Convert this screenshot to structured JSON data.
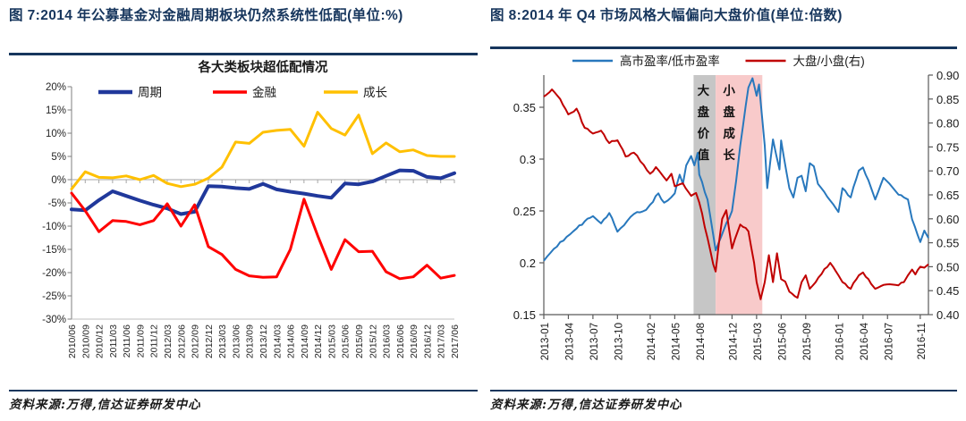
{
  "figure7": {
    "title": "图 7:2014 年公募基金对金融周期板块仍然系统性低配(单位:%)",
    "source": "资料来源:万得,信达证券研发中心",
    "chart_data": {
      "type": "line",
      "title": "各大类板块超低配情况",
      "categories": [
        "2010/06",
        "2010/09",
        "2010/12",
        "2011/03",
        "2011/06",
        "2011/09",
        "2011/12",
        "2012/03",
        "2012/06",
        "2012/09",
        "2012/12",
        "2013/03",
        "2013/06",
        "2013/09",
        "2013/12",
        "2014/03",
        "2014/06",
        "2014/09",
        "2014/12",
        "2015/03",
        "2015/06",
        "2015/09",
        "2015/12",
        "2016/03",
        "2016/06",
        "2016/09",
        "2016/12",
        "2017/03",
        "2017/06"
      ],
      "ylim": [
        -30,
        20
      ],
      "ytick_labels": [
        "20%",
        "15%",
        "10%",
        "5%",
        "0%",
        "-5%",
        "-10%",
        "-15%",
        "-20%",
        "-25%",
        "-30%"
      ],
      "grid": "zero-line-only",
      "legend_position": "top-inside",
      "series": [
        {
          "name": "周期",
          "color": "#20389b",
          "width": 4,
          "values": [
            -6.4,
            -6.6,
            -4.4,
            -2.5,
            -3.5,
            -4.5,
            -5.4,
            -6.2,
            -7.4,
            -6.9,
            -1.4,
            -1.5,
            -1.8,
            -2.0,
            -0.9,
            -2.1,
            -2.6,
            -3.0,
            -3.5,
            -3.9,
            -0.8,
            -1.0,
            -0.4,
            0.8,
            2.0,
            1.9,
            0.6,
            0.3,
            1.4
          ]
        },
        {
          "name": "金融",
          "color": "#ff0000",
          "width": 3,
          "values": [
            -2.9,
            -6.7,
            -11.2,
            -8.8,
            -9.0,
            -9.7,
            -8.8,
            -5.2,
            -10.0,
            -5.4,
            -14.4,
            -16.1,
            -19.3,
            -20.7,
            -21.0,
            -20.9,
            -15.0,
            -4.2,
            -12.0,
            -19.3,
            -12.9,
            -15.5,
            -15.4,
            -19.8,
            -21.3,
            -20.9,
            -18.4,
            -21.2,
            -20.6
          ]
        },
        {
          "name": "成长",
          "color": "#ffc000",
          "width": 3,
          "values": [
            -2.0,
            1.7,
            0.5,
            0.4,
            0.8,
            0.0,
            0.9,
            -0.8,
            -1.5,
            -1.0,
            0.3,
            2.7,
            8.1,
            7.8,
            10.2,
            10.6,
            10.8,
            7.2,
            14.5,
            11.0,
            9.6,
            13.9,
            5.6,
            7.9,
            6.0,
            6.4,
            5.2,
            5.0,
            5.0
          ]
        }
      ]
    }
  },
  "figure8": {
    "title": "图 8:2014 年 Q4 市场风格大幅偏向大盘价值(单位:倍数)",
    "source": "资料来源:万得,信达证券研发中心",
    "chart_data": {
      "type": "line",
      "x_unit": "months-since-2013-01",
      "x_range": [
        0,
        47
      ],
      "xticks": [
        {
          "label": "2013-01",
          "m": 0
        },
        {
          "label": "2013-04",
          "m": 3
        },
        {
          "label": "2013-07",
          "m": 6
        },
        {
          "label": "2013-10",
          "m": 9
        },
        {
          "label": "2014-02",
          "m": 13
        },
        {
          "label": "2014-05",
          "m": 16
        },
        {
          "label": "2014-08",
          "m": 19
        },
        {
          "label": "2014-12",
          "m": 23
        },
        {
          "label": "2015-03",
          "m": 26
        },
        {
          "label": "2015-06",
          "m": 29
        },
        {
          "label": "2015-09",
          "m": 32
        },
        {
          "label": "2016-01",
          "m": 36
        },
        {
          "label": "2016-04",
          "m": 39
        },
        {
          "label": "2016-07",
          "m": 42
        },
        {
          "label": "2016-11",
          "m": 46
        }
      ],
      "left_axis": {
        "lim": [
          0.15,
          0.382
        ],
        "tick_labels": [
          "0.35",
          "0.3",
          "0.25",
          "0.2",
          "0.15"
        ],
        "tick_values": [
          0.35,
          0.3,
          0.25,
          0.2,
          0.15
        ]
      },
      "right_axis": {
        "lim": [
          0.4,
          0.9
        ],
        "tick_labels": [
          "0.90",
          "0.85",
          "0.80",
          "0.75",
          "0.70",
          "0.65",
          "0.60",
          "0.55",
          "0.50",
          "0.45",
          "0.40"
        ],
        "tick_values": [
          0.9,
          0.85,
          0.8,
          0.75,
          0.7,
          0.65,
          0.6,
          0.55,
          0.5,
          0.45,
          0.4
        ]
      },
      "legend_position": "top-center",
      "bands": [
        {
          "label": "大盘价值",
          "color": "#c6c6c6",
          "from_m": 18.3,
          "to_m": 21.0
        },
        {
          "label": "小盘成长",
          "color": "#f8caca",
          "from_m": 21.0,
          "to_m": 26.7
        }
      ],
      "series": [
        {
          "name": "高市盈率/低市盈率",
          "axis": "left",
          "color": "#2878bd",
          "width": 2,
          "points": [
            [
              0,
              0.202
            ],
            [
              2,
              0.22
            ],
            [
              4,
              0.233
            ],
            [
              5,
              0.24
            ],
            [
              6,
              0.245
            ],
            [
              7,
              0.238
            ],
            [
              8,
              0.248
            ],
            [
              9,
              0.23
            ],
            [
              11,
              0.247
            ],
            [
              12.5,
              0.251
            ],
            [
              13,
              0.256
            ],
            [
              14,
              0.267
            ],
            [
              14.7,
              0.258
            ],
            [
              16,
              0.267
            ],
            [
              16.6,
              0.285
            ],
            [
              17,
              0.276
            ],
            [
              17.4,
              0.294
            ],
            [
              18,
              0.303
            ],
            [
              18.4,
              0.294
            ],
            [
              18.8,
              0.306
            ],
            [
              19,
              0.285
            ],
            [
              20,
              0.261
            ],
            [
              21,
              0.212
            ],
            [
              22,
              0.232
            ],
            [
              23,
              0.25
            ],
            [
              23.5,
              0.279
            ],
            [
              24,
              0.313
            ],
            [
              25,
              0.369
            ],
            [
              25.5,
              0.378
            ],
            [
              26,
              0.361
            ],
            [
              26.3,
              0.372
            ],
            [
              27,
              0.313
            ],
            [
              27.3,
              0.272
            ],
            [
              28,
              0.319
            ],
            [
              28.8,
              0.29
            ],
            [
              29,
              0.318
            ],
            [
              30,
              0.272
            ],
            [
              30.5,
              0.263
            ],
            [
              31,
              0.282
            ],
            [
              31.5,
              0.284
            ],
            [
              32,
              0.269
            ],
            [
              32.5,
              0.296
            ],
            [
              33,
              0.293
            ],
            [
              33.5,
              0.276
            ],
            [
              35,
              0.26
            ],
            [
              36,
              0.249
            ],
            [
              36.5,
              0.272
            ],
            [
              37.5,
              0.263
            ],
            [
              38.5,
              0.289
            ],
            [
              39,
              0.292
            ],
            [
              40,
              0.272
            ],
            [
              40.5,
              0.261
            ],
            [
              41.5,
              0.282
            ],
            [
              43,
              0.269
            ],
            [
              44,
              0.263
            ],
            [
              44.5,
              0.261
            ],
            [
              45,
              0.242
            ],
            [
              46,
              0.22
            ],
            [
              46.5,
              0.231
            ],
            [
              47,
              0.224
            ]
          ]
        },
        {
          "name": "大盘/小盘(右)",
          "axis": "right",
          "color": "#c00000",
          "width": 2,
          "points": [
            [
              0,
              0.855
            ],
            [
              1,
              0.87
            ],
            [
              2,
              0.85
            ],
            [
              3,
              0.818
            ],
            [
              4,
              0.83
            ],
            [
              5,
              0.79
            ],
            [
              6,
              0.778
            ],
            [
              7,
              0.784
            ],
            [
              8,
              0.758
            ],
            [
              9,
              0.764
            ],
            [
              10,
              0.73
            ],
            [
              11,
              0.738
            ],
            [
              13,
              0.694
            ],
            [
              13.7,
              0.708
            ],
            [
              15,
              0.68
            ],
            [
              15.6,
              0.694
            ],
            [
              16,
              0.668
            ],
            [
              17,
              0.674
            ],
            [
              18,
              0.648
            ],
            [
              18.6,
              0.654
            ],
            [
              19,
              0.634
            ],
            [
              20,
              0.56
            ],
            [
              20.7,
              0.505
            ],
            [
              21,
              0.49
            ],
            [
              21.4,
              0.55
            ],
            [
              21.8,
              0.6
            ],
            [
              22.3,
              0.618
            ],
            [
              23,
              0.538
            ],
            [
              24,
              0.588
            ],
            [
              25,
              0.574
            ],
            [
              25.7,
              0.508
            ],
            [
              26,
              0.468
            ],
            [
              26.5,
              0.432
            ],
            [
              27,
              0.468
            ],
            [
              27.5,
              0.524
            ],
            [
              28,
              0.468
            ],
            [
              28.5,
              0.528
            ],
            [
              29,
              0.474
            ],
            [
              29.5,
              0.469
            ],
            [
              30,
              0.448
            ],
            [
              31,
              0.435
            ],
            [
              31.5,
              0.468
            ],
            [
              32,
              0.482
            ],
            [
              32.5,
              0.454
            ],
            [
              35,
              0.508
            ],
            [
              36,
              0.482
            ],
            [
              36.5,
              0.468
            ],
            [
              37.5,
              0.454
            ],
            [
              38.5,
              0.482
            ],
            [
              39,
              0.488
            ],
            [
              40,
              0.464
            ],
            [
              40.5,
              0.454
            ],
            [
              41.5,
              0.462
            ],
            [
              43,
              0.462
            ],
            [
              44,
              0.468
            ],
            [
              44.5,
              0.482
            ],
            [
              45,
              0.494
            ],
            [
              45.4,
              0.484
            ],
            [
              46,
              0.5
            ],
            [
              46.5,
              0.498
            ],
            [
              47,
              0.505
            ]
          ]
        }
      ]
    }
  }
}
